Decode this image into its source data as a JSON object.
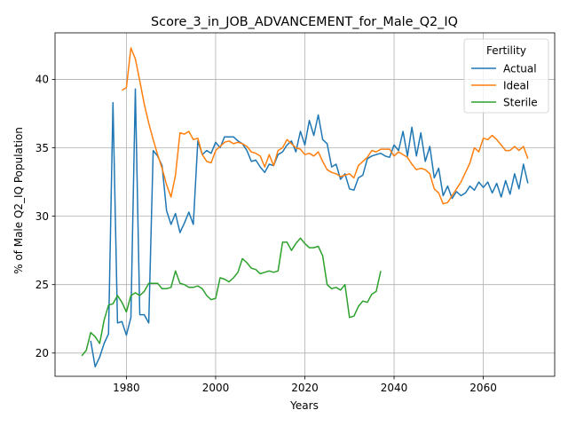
{
  "chart_data": {
    "type": "line",
    "title": "Score_3_in_JOB_ADVANCEMENT_for_Male_Q2_IQ",
    "xlabel": "Years",
    "ylabel": "% of Male Q2_IQ Population",
    "xlim": [
      1964,
      2076
    ],
    "ylim": [
      18.3,
      43.4
    ],
    "xticks": [
      1980,
      2000,
      2020,
      2040,
      2060
    ],
    "yticks": [
      20,
      25,
      30,
      35,
      40
    ],
    "grid": true,
    "legend": {
      "title": "Fertility",
      "placement": "top-right"
    },
    "series": [
      {
        "name": "Actual",
        "color": "#1f77b4",
        "points": [
          [
            1972,
            20.9
          ],
          [
            1973,
            19.0
          ],
          [
            1974,
            19.7
          ],
          [
            1975,
            20.7
          ],
          [
            1976,
            21.4
          ],
          [
            1977,
            38.3
          ],
          [
            1978,
            22.2
          ],
          [
            1979,
            22.3
          ],
          [
            1980,
            21.3
          ],
          [
            1981,
            22.6
          ],
          [
            1982,
            39.3
          ],
          [
            1983,
            22.8
          ],
          [
            1984,
            22.8
          ],
          [
            1985,
            22.2
          ],
          [
            1986,
            34.8
          ],
          [
            1987,
            34.4
          ],
          [
            1988,
            33.7
          ],
          [
            1989,
            30.4
          ],
          [
            1990,
            29.4
          ],
          [
            1991,
            30.2
          ],
          [
            1992,
            28.8
          ],
          [
            1993,
            29.5
          ],
          [
            1994,
            30.3
          ],
          [
            1995,
            29.4
          ],
          [
            1996,
            35.5
          ],
          [
            1997,
            34.5
          ],
          [
            1998,
            34.8
          ],
          [
            1999,
            34.6
          ],
          [
            2000,
            35.4
          ],
          [
            2001,
            35.0
          ],
          [
            2002,
            35.8
          ],
          [
            2003,
            35.8
          ],
          [
            2004,
            35.8
          ],
          [
            2005,
            35.5
          ],
          [
            2006,
            35.3
          ],
          [
            2007,
            34.8
          ],
          [
            2008,
            34.0
          ],
          [
            2009,
            34.1
          ],
          [
            2010,
            33.6
          ],
          [
            2011,
            33.2
          ],
          [
            2012,
            33.8
          ],
          [
            2013,
            33.7
          ],
          [
            2014,
            34.5
          ],
          [
            2015,
            34.7
          ],
          [
            2016,
            35.2
          ],
          [
            2017,
            35.5
          ],
          [
            2018,
            34.7
          ],
          [
            2019,
            36.2
          ],
          [
            2020,
            35.2
          ],
          [
            2021,
            37.0
          ],
          [
            2022,
            35.9
          ],
          [
            2023,
            37.4
          ],
          [
            2024,
            35.6
          ],
          [
            2025,
            35.3
          ],
          [
            2026,
            33.6
          ],
          [
            2027,
            33.8
          ],
          [
            2028,
            32.7
          ],
          [
            2029,
            33.1
          ],
          [
            2030,
            32.0
          ],
          [
            2031,
            31.9
          ],
          [
            2032,
            32.8
          ],
          [
            2033,
            33.0
          ],
          [
            2034,
            34.2
          ],
          [
            2035,
            34.4
          ],
          [
            2036,
            34.5
          ],
          [
            2037,
            34.6
          ],
          [
            2038,
            34.4
          ],
          [
            2039,
            34.3
          ],
          [
            2040,
            35.2
          ],
          [
            2041,
            34.8
          ],
          [
            2042,
            36.2
          ],
          [
            2043,
            34.4
          ],
          [
            2044,
            36.5
          ],
          [
            2045,
            34.4
          ],
          [
            2046,
            36.1
          ],
          [
            2047,
            34.0
          ],
          [
            2048,
            35.1
          ],
          [
            2049,
            32.8
          ],
          [
            2050,
            33.5
          ],
          [
            2051,
            31.5
          ],
          [
            2052,
            32.2
          ],
          [
            2053,
            31.3
          ],
          [
            2054,
            31.8
          ],
          [
            2055,
            31.5
          ],
          [
            2056,
            31.7
          ],
          [
            2057,
            32.2
          ],
          [
            2058,
            31.9
          ],
          [
            2059,
            32.5
          ],
          [
            2060,
            32.1
          ],
          [
            2061,
            32.5
          ],
          [
            2062,
            31.7
          ],
          [
            2063,
            32.4
          ],
          [
            2064,
            31.4
          ],
          [
            2065,
            32.6
          ],
          [
            2066,
            31.6
          ],
          [
            2067,
            33.1
          ],
          [
            2068,
            32.0
          ],
          [
            2069,
            33.8
          ],
          [
            2070,
            32.4
          ]
        ]
      },
      {
        "name": "Ideal",
        "color": "#ff7f0e",
        "points": [
          [
            1979,
            39.2
          ],
          [
            1980,
            39.4
          ],
          [
            1981,
            42.3
          ],
          [
            1982,
            41.5
          ],
          [
            1983,
            39.9
          ],
          [
            1984,
            38.2
          ],
          [
            1985,
            36.8
          ],
          [
            1986,
            35.6
          ],
          [
            1987,
            34.5
          ],
          [
            1988,
            33.5
          ],
          [
            1989,
            32.3
          ],
          [
            1990,
            31.4
          ],
          [
            1991,
            33.0
          ],
          [
            1992,
            36.1
          ],
          [
            1993,
            36.0
          ],
          [
            1994,
            36.2
          ],
          [
            1995,
            35.6
          ],
          [
            1996,
            35.7
          ],
          [
            1997,
            34.5
          ],
          [
            1998,
            34.0
          ],
          [
            1999,
            33.9
          ],
          [
            2000,
            34.8
          ],
          [
            2001,
            35.1
          ],
          [
            2002,
            35.4
          ],
          [
            2003,
            35.5
          ],
          [
            2004,
            35.3
          ],
          [
            2005,
            35.4
          ],
          [
            2006,
            35.3
          ],
          [
            2007,
            35.1
          ],
          [
            2008,
            34.7
          ],
          [
            2009,
            34.6
          ],
          [
            2010,
            34.4
          ],
          [
            2011,
            33.6
          ],
          [
            2012,
            34.5
          ],
          [
            2013,
            33.7
          ],
          [
            2014,
            34.8
          ],
          [
            2015,
            35.0
          ],
          [
            2016,
            35.6
          ],
          [
            2017,
            35.3
          ],
          [
            2018,
            35.0
          ],
          [
            2019,
            34.9
          ],
          [
            2020,
            34.5
          ],
          [
            2021,
            34.6
          ],
          [
            2022,
            34.4
          ],
          [
            2023,
            34.7
          ],
          [
            2024,
            34.0
          ],
          [
            2025,
            33.4
          ],
          [
            2026,
            33.2
          ],
          [
            2027,
            33.1
          ],
          [
            2028,
            32.9
          ],
          [
            2029,
            33.0
          ],
          [
            2030,
            33.1
          ],
          [
            2031,
            32.8
          ],
          [
            2032,
            33.7
          ],
          [
            2033,
            34.0
          ],
          [
            2034,
            34.3
          ],
          [
            2035,
            34.8
          ],
          [
            2036,
            34.7
          ],
          [
            2037,
            34.9
          ],
          [
            2038,
            34.9
          ],
          [
            2039,
            34.9
          ],
          [
            2040,
            34.4
          ],
          [
            2041,
            34.7
          ],
          [
            2042,
            34.5
          ],
          [
            2043,
            34.3
          ],
          [
            2044,
            33.8
          ],
          [
            2045,
            33.4
          ],
          [
            2046,
            33.5
          ],
          [
            2047,
            33.4
          ],
          [
            2048,
            33.1
          ],
          [
            2049,
            32.0
          ],
          [
            2050,
            31.7
          ],
          [
            2051,
            30.9
          ],
          [
            2052,
            31.0
          ],
          [
            2053,
            31.5
          ],
          [
            2054,
            32.0
          ],
          [
            2055,
            32.5
          ],
          [
            2056,
            33.2
          ],
          [
            2057,
            33.9
          ],
          [
            2058,
            35.0
          ],
          [
            2059,
            34.7
          ],
          [
            2060,
            35.7
          ],
          [
            2061,
            35.6
          ],
          [
            2062,
            35.9
          ],
          [
            2063,
            35.6
          ],
          [
            2064,
            35.2
          ],
          [
            2065,
            34.8
          ],
          [
            2066,
            34.8
          ],
          [
            2067,
            35.1
          ],
          [
            2068,
            34.8
          ],
          [
            2069,
            35.1
          ],
          [
            2070,
            34.2
          ]
        ]
      },
      {
        "name": "Sterile",
        "color": "#2ca02c",
        "points": [
          [
            1970,
            19.8
          ],
          [
            1971,
            20.2
          ],
          [
            1972,
            21.5
          ],
          [
            1973,
            21.2
          ],
          [
            1974,
            20.7
          ],
          [
            1975,
            22.4
          ],
          [
            1976,
            23.5
          ],
          [
            1977,
            23.6
          ],
          [
            1978,
            24.2
          ],
          [
            1979,
            23.7
          ],
          [
            1980,
            23.0
          ],
          [
            1981,
            24.2
          ],
          [
            1982,
            24.4
          ],
          [
            1983,
            24.2
          ],
          [
            1984,
            24.5
          ],
          [
            1985,
            25.1
          ],
          [
            1986,
            25.1
          ],
          [
            1987,
            25.1
          ],
          [
            1988,
            24.7
          ],
          [
            1989,
            24.7
          ],
          [
            1990,
            24.8
          ],
          [
            1991,
            26.0
          ],
          [
            1992,
            25.1
          ],
          [
            1993,
            25.0
          ],
          [
            1994,
            24.8
          ],
          [
            1995,
            24.8
          ],
          [
            1996,
            24.9
          ],
          [
            1997,
            24.7
          ],
          [
            1998,
            24.2
          ],
          [
            1999,
            23.9
          ],
          [
            2000,
            24.0
          ],
          [
            2001,
            25.5
          ],
          [
            2002,
            25.4
          ],
          [
            2003,
            25.2
          ],
          [
            2004,
            25.5
          ],
          [
            2005,
            25.9
          ],
          [
            2006,
            26.9
          ],
          [
            2007,
            26.6
          ],
          [
            2008,
            26.2
          ],
          [
            2009,
            26.1
          ],
          [
            2010,
            25.8
          ],
          [
            2011,
            25.9
          ],
          [
            2012,
            26.0
          ],
          [
            2013,
            25.9
          ],
          [
            2014,
            26.0
          ],
          [
            2015,
            28.1
          ],
          [
            2016,
            28.1
          ],
          [
            2017,
            27.5
          ],
          [
            2018,
            28.0
          ],
          [
            2019,
            28.4
          ],
          [
            2020,
            28.0
          ],
          [
            2021,
            27.7
          ],
          [
            2022,
            27.7
          ],
          [
            2023,
            27.8
          ],
          [
            2024,
            27.1
          ],
          [
            2025,
            25.0
          ],
          [
            2026,
            24.7
          ],
          [
            2027,
            24.8
          ],
          [
            2028,
            24.6
          ],
          [
            2029,
            25.0
          ],
          [
            2030,
            22.6
          ],
          [
            2031,
            22.7
          ],
          [
            2032,
            23.4
          ],
          [
            2033,
            23.8
          ],
          [
            2034,
            23.7
          ],
          [
            2035,
            24.3
          ],
          [
            2036,
            24.5
          ],
          [
            2037,
            26.0
          ]
        ]
      }
    ]
  }
}
